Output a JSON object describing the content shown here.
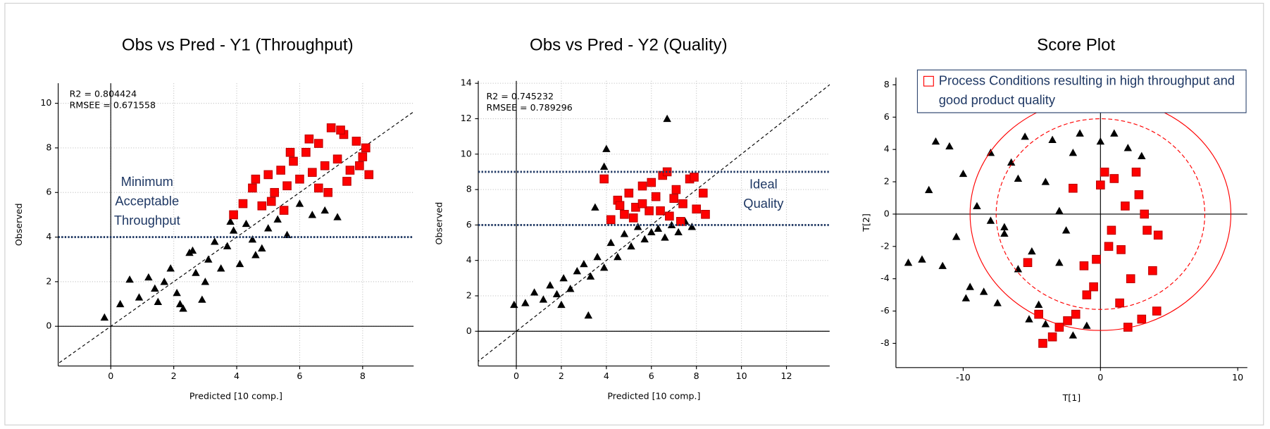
{
  "chart_data": [
    {
      "type": "scatter",
      "title": "Obs vs Pred - Y1 (Throughput)",
      "x_label": "Predicted [10 comp.]",
      "y_label": "Observed",
      "stats": [
        "R2 = 0.804424",
        "RMSEE = 0.671558"
      ],
      "annotation": [
        "Minimum",
        "Acceptable",
        "Throughput"
      ],
      "xlim": [
        -1.67,
        9.62
      ],
      "ylim": [
        -1.78,
        10.9
      ],
      "xticks": [
        0,
        2,
        4,
        6,
        8
      ],
      "yticks": [
        0,
        2,
        4,
        6,
        8,
        10
      ],
      "grid": true,
      "diagonal": true,
      "reference_lines": [
        4
      ],
      "reference_color": "#1f3864",
      "series": [
        {
          "color": "#000000",
          "marker": "triangle",
          "x": [
            -0.2,
            0.3,
            0.6,
            0.9,
            1.2,
            1.4,
            1.7,
            1.9,
            2.1,
            2.3,
            2.5,
            2.7,
            2.9,
            3.1,
            3.3,
            3.5,
            3.7,
            3.9,
            4.1,
            4.3,
            4.5,
            4.8,
            5.0,
            5.3,
            5.6,
            6.0,
            6.4,
            6.8,
            7.2,
            2.2,
            3.0,
            2.6,
            3.8,
            1.5,
            4.6
          ],
          "values": [
            0.4,
            1.0,
            2.1,
            1.3,
            2.2,
            1.7,
            2.0,
            2.6,
            1.5,
            0.8,
            3.3,
            2.4,
            1.2,
            3.0,
            3.8,
            2.6,
            3.6,
            4.3,
            2.8,
            4.6,
            3.9,
            3.5,
            4.4,
            4.8,
            4.1,
            5.5,
            5.0,
            5.2,
            4.9,
            1.0,
            2.0,
            3.4,
            4.7,
            1.1,
            3.2
          ]
        },
        {
          "color": "#ff0000",
          "marker": "square",
          "x": [
            3.9,
            4.2,
            4.5,
            4.8,
            5.0,
            5.2,
            5.4,
            5.6,
            5.8,
            6.0,
            6.2,
            6.4,
            6.6,
            6.8,
            7.0,
            7.2,
            7.4,
            7.6,
            7.8,
            8.0,
            8.2,
            5.1,
            5.7,
            6.3,
            6.9,
            7.5,
            8.1,
            4.6,
            5.5,
            6.6,
            7.3,
            7.9
          ],
          "values": [
            5.0,
            5.5,
            6.2,
            5.4,
            6.8,
            6.0,
            7.0,
            6.3,
            7.4,
            6.6,
            7.8,
            6.9,
            8.2,
            7.2,
            8.9,
            7.5,
            8.6,
            7.0,
            8.3,
            7.6,
            6.8,
            5.6,
            7.8,
            8.4,
            6.0,
            6.5,
            8.0,
            6.6,
            5.2,
            6.2,
            8.8,
            7.2
          ]
        }
      ]
    },
    {
      "type": "scatter",
      "title": "Obs vs Pred - Y2 (Quality)",
      "x_label": "Predicted [10 comp.]",
      "y_label": "Observed",
      "stats": [
        "R2 = 0.745232",
        "RMSEE = 0.789296"
      ],
      "annotation": [
        "Ideal",
        "Quality"
      ],
      "xlim": [
        -1.69,
        13.92
      ],
      "ylim": [
        -1.96,
        14.14
      ],
      "xticks": [
        0,
        2,
        4,
        6,
        8,
        10,
        12
      ],
      "yticks": [
        0,
        2,
        4,
        6,
        8,
        10,
        12,
        14
      ],
      "grid": true,
      "diagonal": true,
      "reference_lines": [
        6,
        9
      ],
      "reference_color": "#1f3864",
      "series": [
        {
          "color": "#000000",
          "marker": "triangle",
          "x": [
            -0.1,
            0.4,
            0.8,
            1.2,
            1.5,
            1.8,
            2.1,
            2.4,
            2.7,
            3.0,
            3.3,
            3.6,
            3.9,
            4.2,
            4.5,
            4.8,
            5.1,
            5.4,
            5.7,
            6.0,
            6.3,
            6.6,
            6.9,
            7.2,
            7.5,
            7.8,
            3.2,
            4.0,
            2.0,
            3.5,
            6.7,
            3.9
          ],
          "values": [
            1.5,
            1.6,
            2.2,
            1.8,
            2.6,
            2.1,
            3.0,
            2.4,
            3.4,
            3.8,
            3.1,
            4.2,
            3.6,
            5.0,
            4.2,
            5.5,
            4.8,
            5.9,
            5.2,
            5.6,
            5.8,
            5.3,
            6.0,
            5.6,
            6.2,
            5.9,
            0.9,
            10.3,
            1.5,
            7.0,
            12.0,
            9.3
          ]
        },
        {
          "color": "#ff0000",
          "marker": "square",
          "x": [
            3.9,
            4.2,
            4.5,
            4.8,
            5.0,
            5.3,
            5.6,
            5.9,
            6.2,
            6.5,
            6.8,
            7.1,
            7.4,
            7.7,
            8.0,
            8.3,
            5.2,
            6.0,
            6.7,
            7.3,
            7.9,
            8.4,
            4.6,
            5.6,
            6.4,
            7.0
          ],
          "values": [
            8.6,
            6.3,
            7.4,
            6.6,
            7.8,
            7.0,
            8.2,
            6.8,
            7.6,
            8.8,
            6.5,
            8.0,
            7.2,
            8.6,
            6.9,
            7.8,
            6.4,
            8.4,
            9.0,
            6.2,
            8.7,
            6.6,
            7.1,
            7.2,
            6.8,
            7.5
          ]
        }
      ]
    },
    {
      "type": "scatter",
      "title": "Score Plot",
      "x_label": "T[1]",
      "y_label": "T[2]",
      "xlim": [
        -14.9,
        10.7
      ],
      "ylim": [
        -9.5,
        8.45
      ],
      "xticks": [
        -10,
        0,
        10
      ],
      "yticks": [
        -8,
        -6,
        -4,
        -2,
        0,
        2,
        4,
        6,
        8
      ],
      "grid": false,
      "ellipse_color": "#ff0000",
      "ellipses": [
        {
          "center": [
            0,
            0
          ],
          "rx": 9.5,
          "ry": 7.2,
          "style": "solid"
        },
        {
          "center": [
            0,
            0
          ],
          "rx": 7.6,
          "ry": 5.9,
          "style": "dashed"
        }
      ],
      "series": [
        {
          "color": "#000000",
          "marker": "triangle",
          "x": [
            -14,
            -13,
            -12.5,
            -12,
            -11.5,
            -11,
            -10.5,
            -10,
            -9.5,
            -9,
            -8.5,
            -8,
            -7.5,
            -7,
            -6.5,
            -6,
            -5.5,
            -5,
            -4.5,
            -4,
            -3.5,
            -3,
            -2.5,
            -2,
            -1.5,
            -1,
            0,
            1,
            2,
            3,
            -8,
            -6,
            -4,
            -3,
            -9.8,
            -5.2,
            -2,
            -7
          ],
          "values": [
            -3,
            -2.8,
            1.5,
            4.5,
            -3.2,
            4.2,
            -1.4,
            2.5,
            -4.5,
            0.5,
            -4.8,
            3.8,
            -5.5,
            -1.2,
            3.2,
            -3.4,
            4.8,
            -2.3,
            -5.6,
            2,
            4.6,
            -3,
            -1,
            3.8,
            5,
            -6.9,
            4.5,
            5,
            4.1,
            3.6,
            -0.4,
            2.2,
            -6.8,
            0.2,
            -5.2,
            -6.5,
            -7.5,
            -0.8
          ]
        },
        {
          "name": "Process Conditions resulting in high throughput and good product quality",
          "color": "#ff0000",
          "marker": "square",
          "x": [
            -4.2,
            -3.5,
            -3,
            -2.4,
            -1.8,
            -1.2,
            -0.5,
            0,
            0.3,
            0.6,
            1,
            1.4,
            1.8,
            2.2,
            2.6,
            3,
            3.4,
            3.8,
            4.2,
            -5.3,
            -2,
            -1,
            0.8,
            2,
            3.2,
            4.1,
            -4.5,
            -0.3,
            1.5,
            2.8
          ],
          "values": [
            -8,
            -7.6,
            -7,
            -6.6,
            -6.2,
            -3.2,
            -4.5,
            1.8,
            2.6,
            -2,
            2.2,
            -5.5,
            0.5,
            -4,
            2.6,
            -6.5,
            -1,
            -3.5,
            -1.3,
            -3,
            1.6,
            -5,
            -1,
            -7,
            0,
            -6,
            -6.2,
            -2.8,
            -2.2,
            1.2
          ]
        }
      ]
    }
  ]
}
